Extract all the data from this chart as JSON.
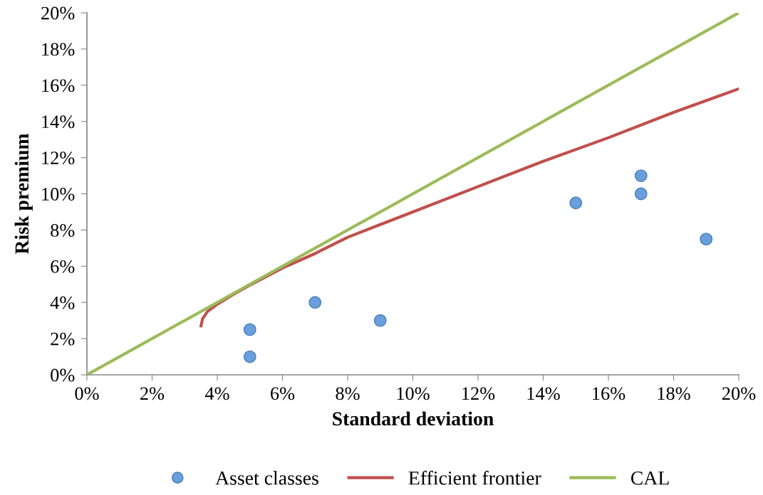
{
  "chart_data": {
    "type": "scatter",
    "xlabel": "Standard deviation",
    "ylabel": "Risk premium",
    "xlim": [
      0,
      20
    ],
    "ylim": [
      0,
      20
    ],
    "xticks": [
      {
        "value": 0,
        "label": "0%"
      },
      {
        "value": 2,
        "label": "2%"
      },
      {
        "value": 4,
        "label": "4%"
      },
      {
        "value": 6,
        "label": "6%"
      },
      {
        "value": 8,
        "label": "8%"
      },
      {
        "value": 10,
        "label": "10%"
      },
      {
        "value": 12,
        "label": "12%"
      },
      {
        "value": 14,
        "label": "14%"
      },
      {
        "value": 16,
        "label": "16%"
      },
      {
        "value": 18,
        "label": "18%"
      },
      {
        "value": 20,
        "label": "20%"
      }
    ],
    "yticks": [
      {
        "value": 0,
        "label": "0%"
      },
      {
        "value": 2,
        "label": "2%"
      },
      {
        "value": 4,
        "label": "4%"
      },
      {
        "value": 6,
        "label": "6%"
      },
      {
        "value": 8,
        "label": "8%"
      },
      {
        "value": 10,
        "label": "10%"
      },
      {
        "value": 12,
        "label": "12%"
      },
      {
        "value": 14,
        "label": "14%"
      },
      {
        "value": 16,
        "label": "16%"
      },
      {
        "value": 18,
        "label": "18%"
      },
      {
        "value": 20,
        "label": "20%"
      }
    ],
    "grid": false,
    "legend": "bottom",
    "series": [
      {
        "name": "Asset classes",
        "marker": "circle",
        "color": "#6a9fdc",
        "x": [
          5,
          5,
          7,
          9,
          15,
          17,
          17,
          19
        ],
        "values": [
          2.5,
          1,
          4,
          3,
          9.5,
          11,
          10,
          7.5
        ]
      },
      {
        "name": "Efficient frontier",
        "type": "line",
        "marker": "none",
        "color": "#c0504d",
        "x": [
          3.5,
          3.55,
          3.7,
          4,
          4.5,
          5,
          6,
          7,
          8,
          9,
          10,
          12,
          14,
          16,
          18,
          20
        ],
        "values": [
          2.7,
          3.1,
          3.5,
          3.9,
          4.45,
          4.95,
          5.9,
          6.7,
          7.6,
          8.3,
          9.0,
          10.4,
          11.8,
          13.1,
          14.5,
          15.8
        ]
      },
      {
        "name": "CAL",
        "type": "line",
        "marker": "none",
        "color": "#9bbb59",
        "x": [
          0,
          20
        ],
        "values": [
          0,
          20
        ]
      }
    ]
  }
}
